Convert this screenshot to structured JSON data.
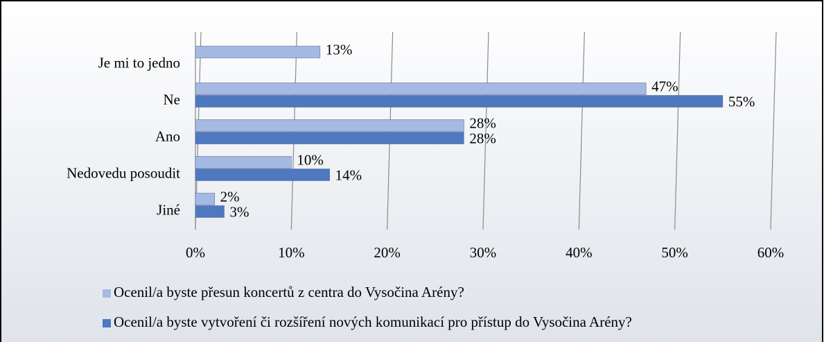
{
  "chart_data": {
    "type": "bar",
    "orientation": "horizontal",
    "categories": [
      "Je mi to jedno",
      "Ne",
      "Ano",
      "Nedovedu posoudit",
      "Jiné"
    ],
    "series": [
      {
        "name": "Ocenil/a byste přesun koncertů z centra do Vysočina Arény?",
        "color": "#a5b9e2",
        "values": [
          13,
          47,
          28,
          10,
          2
        ],
        "value_labels": [
          "13%",
          "47%",
          "28%",
          "10%",
          "2%"
        ]
      },
      {
        "name": "Ocenil/a byste vytvoření či rozšíření nových komunikací pro přístup do Vysočina Arény?",
        "color": "#4e78c0",
        "values": [
          null,
          55,
          28,
          14,
          3
        ],
        "value_labels": [
          null,
          "55%",
          "28%",
          "14%",
          "3%"
        ]
      }
    ],
    "xlim": [
      0,
      60
    ],
    "xticks": [
      {
        "value": 0,
        "label": "0%"
      },
      {
        "value": 10,
        "label": "10%"
      },
      {
        "value": 20,
        "label": "20%"
      },
      {
        "value": 30,
        "label": "30%"
      },
      {
        "value": 40,
        "label": "40%"
      },
      {
        "value": 50,
        "label": "50%"
      },
      {
        "value": 60,
        "label": "60%"
      }
    ],
    "grid": true,
    "legend": "bottom"
  }
}
